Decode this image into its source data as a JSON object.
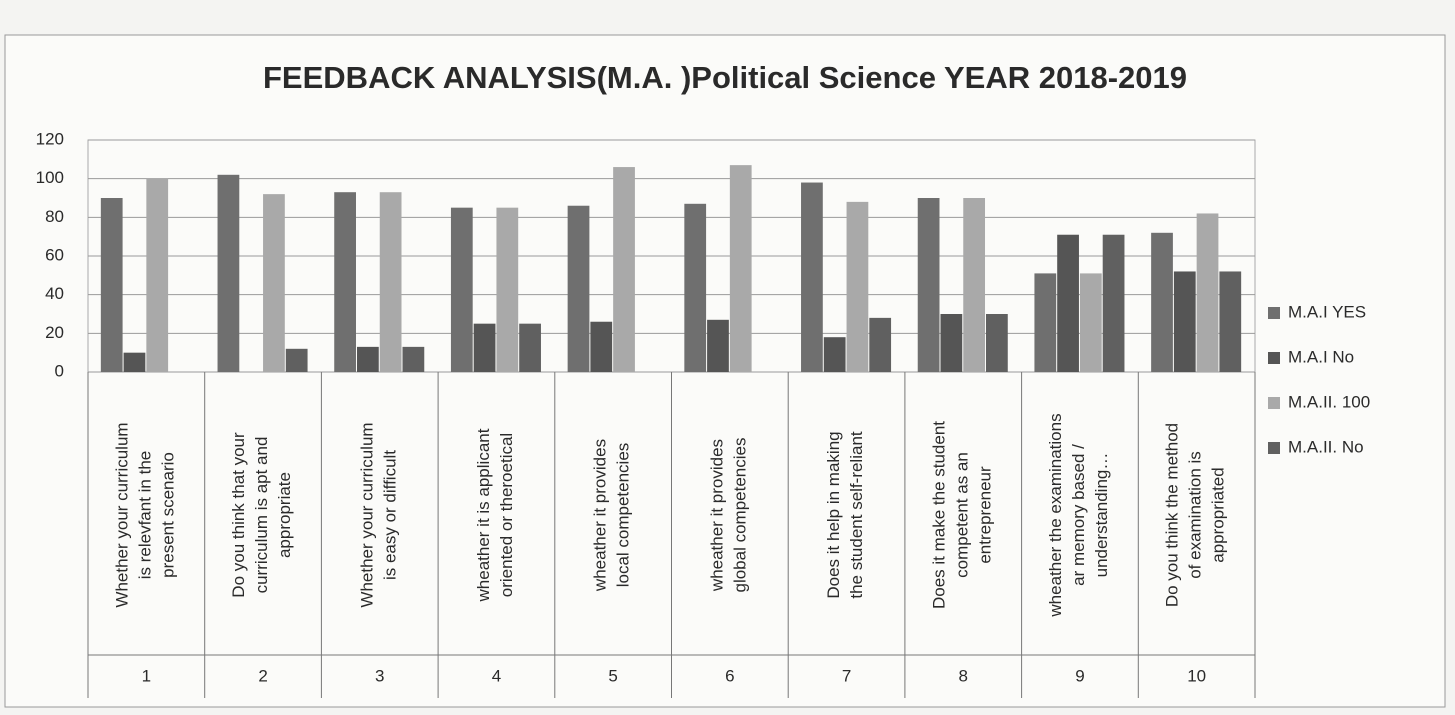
{
  "chart_data": {
    "type": "bar",
    "title": "FEEDBACK ANALYSIS(M.A. )Political Science  YEAR 2018-2019",
    "categories": [
      "Whether your curriculum is relevfant in the present scenario",
      "Do you think that your curriculum is apt and appropriate",
      "Whether your curriculum is easy or difficult",
      "wheather it is applicant oriented or theroetical",
      "wheather it provides local competencies",
      "wheather it provides global competencies",
      "Does it help in making the student self-reliant",
      "Does it make the student competent as an entrepreneur",
      "wheather the examinations ar memory based / understanding…",
      "Do you think the method of examination is appropriated"
    ],
    "category_groups": [
      "1",
      "2",
      "3",
      "4",
      "5",
      "6",
      "7",
      "8",
      "9",
      "10"
    ],
    "series": [
      {
        "name": "M.A.I YES",
        "color": "#6f6f6f",
        "values": [
          90,
          102,
          93,
          85,
          86,
          87,
          98,
          90,
          51,
          72
        ]
      },
      {
        "name": "M.A.I No",
        "color": "#555555",
        "values": [
          10,
          0,
          13,
          25,
          26,
          27,
          18,
          30,
          71,
          52
        ]
      },
      {
        "name": "M.A.II. 100",
        "color": "#a9a9a9",
        "values": [
          100,
          92,
          93,
          85,
          106,
          107,
          88,
          90,
          51,
          82
        ]
      },
      {
        "name": "M.A.II. No",
        "color": "#606060",
        "values": [
          0,
          12,
          13,
          25,
          0,
          0,
          28,
          30,
          71,
          52
        ]
      }
    ],
    "ylim": [
      0,
      120
    ],
    "yticks": [
      0,
      20,
      40,
      60,
      80,
      100,
      120
    ],
    "grid": true,
    "legend": "right"
  }
}
